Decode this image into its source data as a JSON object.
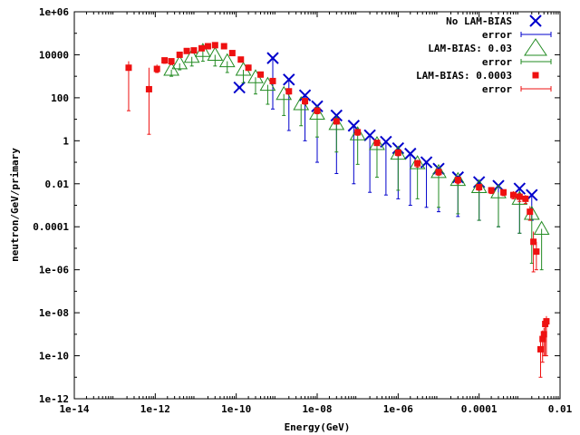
{
  "chart_data": {
    "type": "scatter",
    "title": "",
    "xlabel": "Energy(GeV)",
    "ylabel": "neutron/GeV/primary",
    "x_scale": "log",
    "y_scale": "log",
    "xlim": [
      1e-14,
      0.01
    ],
    "ylim": [
      1e-12,
      1000000.0
    ],
    "grid": false,
    "legend_position": "top-right",
    "x_ticks": [
      1e-14,
      1e-12,
      1e-10,
      1e-08,
      1e-06,
      0.0001,
      0.01
    ],
    "x_tick_labels": [
      "1e-14",
      "1e-12",
      "1e-10",
      "1e-08",
      "1e-06",
      "0.0001",
      "0.01"
    ],
    "y_ticks": [
      1e-12,
      1e-10,
      1e-08,
      1e-06,
      0.0001,
      0.01,
      1,
      100,
      10000,
      1000000.0
    ],
    "y_tick_labels": [
      "1e-12",
      "1e-10",
      "1e-08",
      "1e-06",
      "0.0001",
      "0.01",
      "1",
      "100",
      "10000",
      "1e+06"
    ],
    "legend": [
      {
        "label": "No LAM-BIAS",
        "marker": "x",
        "color": "#0000cc"
      },
      {
        "label": "error",
        "marker": "errorbar",
        "color": "#0000cc"
      },
      {
        "label": "LAM-BIAS: 0.03",
        "marker": "triangle",
        "color": "#228b22"
      },
      {
        "label": "error",
        "marker": "errorbar",
        "color": "#228b22"
      },
      {
        "label": "LAM-BIAS: 0.0003",
        "marker": "square",
        "color": "#ee1111"
      },
      {
        "label": "error",
        "marker": "errorbar",
        "color": "#ee1111"
      }
    ],
    "series": [
      {
        "name": "No LAM-BIAS",
        "color": "#0000cc",
        "marker": "x",
        "x": [
          1.2e-10,
          8e-10,
          2e-09,
          5e-09,
          1e-08,
          3e-08,
          8e-08,
          2e-07,
          5e-07,
          1e-06,
          2e-06,
          5e-06,
          1e-05,
          3e-05,
          0.0001,
          0.0003,
          0.001,
          0.002
        ],
        "y": [
          300,
          7000,
          700,
          130,
          40,
          15,
          5,
          1.8,
          0.9,
          0.45,
          0.25,
          0.1,
          0.05,
          0.02,
          0.012,
          0.008,
          0.006,
          0.003
        ],
        "y_low": [
          300,
          30,
          3,
          1,
          0.1,
          0.03,
          0.01,
          0.004,
          0.003,
          0.002,
          0.001,
          0.0008,
          0.0005,
          0.0003,
          0.0002,
          0.0001,
          5e-05,
          0.0002
        ]
      },
      {
        "name": "LAM-BIAS: 0.03",
        "color": "#228b22",
        "marker": "triangle",
        "x": [
          2.5e-12,
          4e-12,
          8e-12,
          1.5e-11,
          3e-11,
          6e-11,
          1.5e-10,
          3e-10,
          6e-10,
          1.5e-09,
          4e-09,
          1e-08,
          3e-08,
          1e-07,
          3e-07,
          1e-06,
          3e-06,
          1e-05,
          3e-05,
          0.0001,
          0.0003,
          0.001,
          0.002,
          0.0035
        ],
        "y": [
          2000,
          4000,
          8000,
          15000,
          10000,
          5000,
          2000,
          900,
          400,
          150,
          50,
          18,
          6,
          2,
          0.7,
          0.25,
          0.09,
          0.035,
          0.015,
          0.007,
          0.004,
          0.002,
          0.0004,
          8e-05
        ],
        "y_low": [
          1000,
          2000,
          3000,
          5000,
          3000,
          1500,
          500,
          150,
          50,
          15,
          5,
          1.5,
          0.3,
          0.08,
          0.02,
          0.005,
          0.002,
          0.0008,
          0.0004,
          0.0002,
          0.0001,
          5e-05,
          2e-06,
          1e-06
        ]
      },
      {
        "name": "LAM-BIAS: 0.0003",
        "color": "#ee1111",
        "marker": "square",
        "x": [
          2.2e-13,
          7e-13,
          1.1e-12,
          1.7e-12,
          2.5e-12,
          4e-12,
          6e-12,
          9e-12,
          1.4e-11,
          2e-11,
          3e-11,
          5e-11,
          8e-11,
          1.3e-10,
          2e-10,
          4e-10,
          8e-10,
          2e-09,
          5e-09,
          1e-08,
          3e-08,
          1e-07,
          3e-07,
          1e-06,
          3e-06,
          1e-05,
          3e-05,
          0.0001,
          0.0002,
          0.0004,
          0.0007,
          0.001,
          0.0014,
          0.0018,
          0.0022,
          0.0026,
          0.0033,
          0.0037,
          0.004,
          0.0043,
          0.0046
        ],
        "y": [
          2500,
          250,
          2200,
          5500,
          5000,
          10000,
          15000,
          16000,
          20000,
          25000,
          28000,
          25000,
          12000,
          6000,
          2500,
          1200,
          600,
          200,
          70,
          25,
          8,
          2.5,
          0.8,
          0.28,
          0.09,
          0.035,
          0.015,
          0.007,
          0.005,
          0.004,
          0.003,
          0.0025,
          0.002,
          0.0005,
          2e-05,
          7e-06,
          2e-10,
          6e-10,
          1e-09,
          3e-09,
          4e-09
        ],
        "y_low": [
          25,
          2,
          1500,
          4000,
          3500,
          8000,
          12000,
          13000,
          17000,
          22000,
          25000,
          22000,
          10000,
          5000,
          2000,
          1000,
          500,
          150,
          50,
          18,
          6,
          1.8,
          0.6,
          0.2,
          0.06,
          0.025,
          0.01,
          0.005,
          0.0035,
          0.0028,
          0.002,
          0.0015,
          0.0012,
          0.0002,
          8e-07,
          1e-06,
          1e-11,
          5e-11,
          1e-10,
          1e-10,
          1e-10
        ],
        "y_high": [
          5000,
          2500,
          3500,
          7000,
          6500,
          12000,
          18000,
          20000,
          24000,
          30000,
          32000,
          30000,
          15000,
          8000,
          3500,
          1500,
          800,
          250,
          90,
          35,
          10,
          3.5,
          1.1,
          0.4,
          0.13,
          0.05,
          0.022,
          0.01,
          0.007,
          0.0055,
          0.0045,
          0.0038,
          0.003,
          0.0009,
          6e-05,
          2e-05,
          6e-10,
          1.5e-09,
          2e-09,
          5e-09,
          7e-09
        ]
      }
    ]
  }
}
